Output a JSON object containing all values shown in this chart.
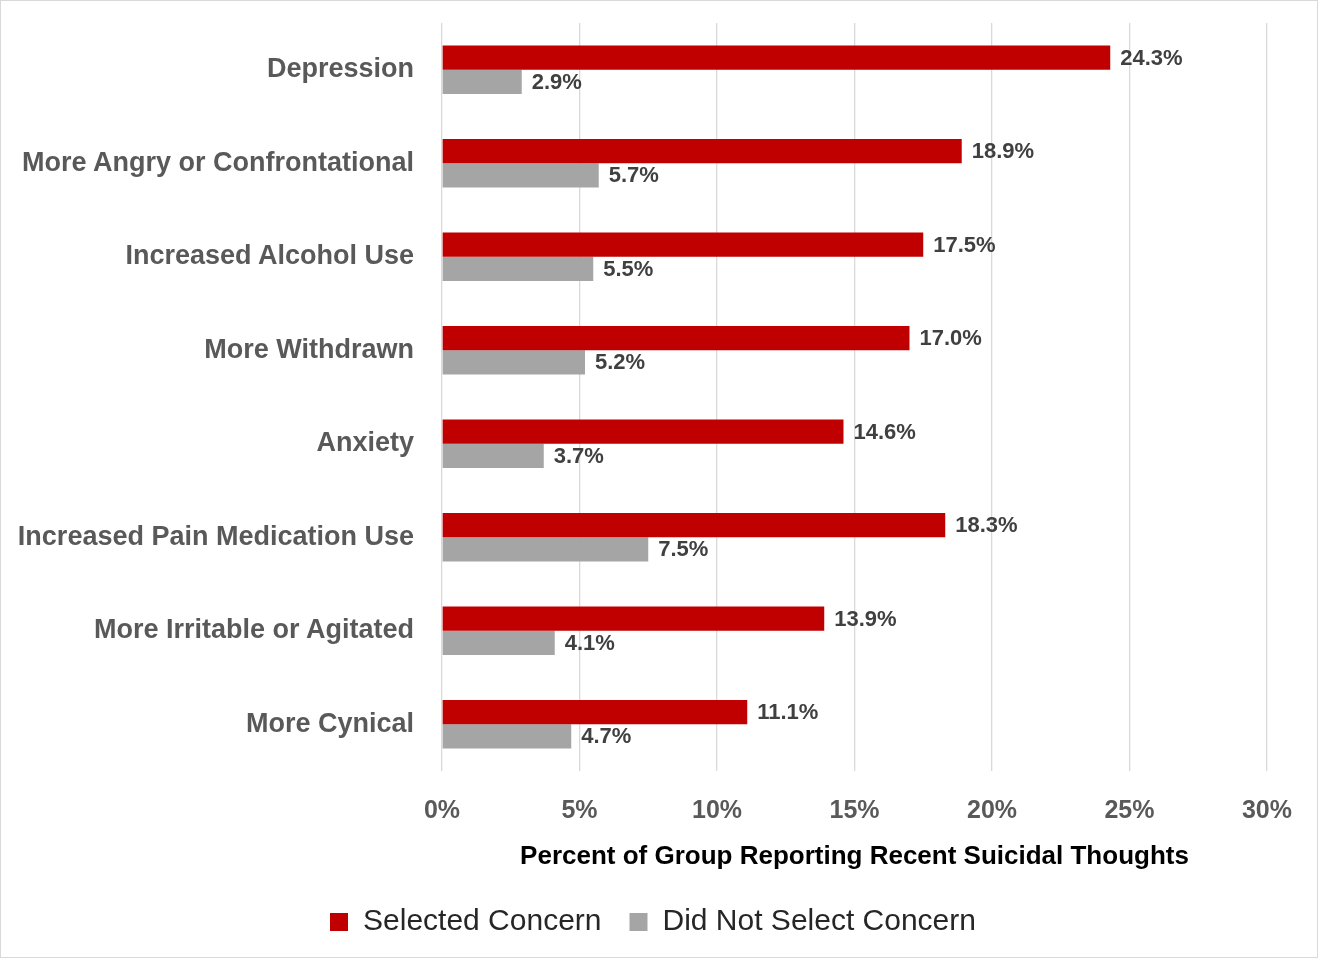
{
  "chart_data": {
    "type": "bar",
    "orientation": "horizontal",
    "categories": [
      "Depression",
      "More Angry or Confrontational",
      "Increased Alcohol Use",
      "More Withdrawn",
      "Anxiety",
      "Increased Pain Medication Use",
      "More Irritable or Agitated",
      "More Cynical"
    ],
    "series": [
      {
        "name": "Selected Concern",
        "color": "#c00000",
        "values": [
          24.3,
          18.9,
          17.5,
          17.0,
          14.6,
          18.3,
          13.9,
          11.1
        ],
        "value_labels": [
          "24.3%",
          "18.9%",
          "17.5%",
          "17.0%",
          "14.6%",
          "18.3%",
          "13.9%",
          "11.1%"
        ]
      },
      {
        "name": "Did Not Select Concern",
        "color": "#a5a5a5",
        "values": [
          2.9,
          5.7,
          5.5,
          5.2,
          3.7,
          7.5,
          4.1,
          4.7
        ],
        "value_labels": [
          "2.9%",
          "5.7%",
          "5.5%",
          "5.2%",
          "3.7%",
          "7.5%",
          "4.1%",
          "4.7%"
        ]
      }
    ],
    "xlabel": "Percent of Group Reporting Recent Suicidal Thoughts",
    "xlim": [
      0,
      30
    ],
    "xticks": [
      {
        "value": 0,
        "label": "0%"
      },
      {
        "value": 5,
        "label": "5%"
      },
      {
        "value": 10,
        "label": "10%"
      },
      {
        "value": 15,
        "label": "15%"
      },
      {
        "value": 20,
        "label": "20%"
      },
      {
        "value": 25,
        "label": "25%"
      },
      {
        "value": 30,
        "label": "30%"
      }
    ],
    "grid": "x",
    "legend": "bottom"
  }
}
